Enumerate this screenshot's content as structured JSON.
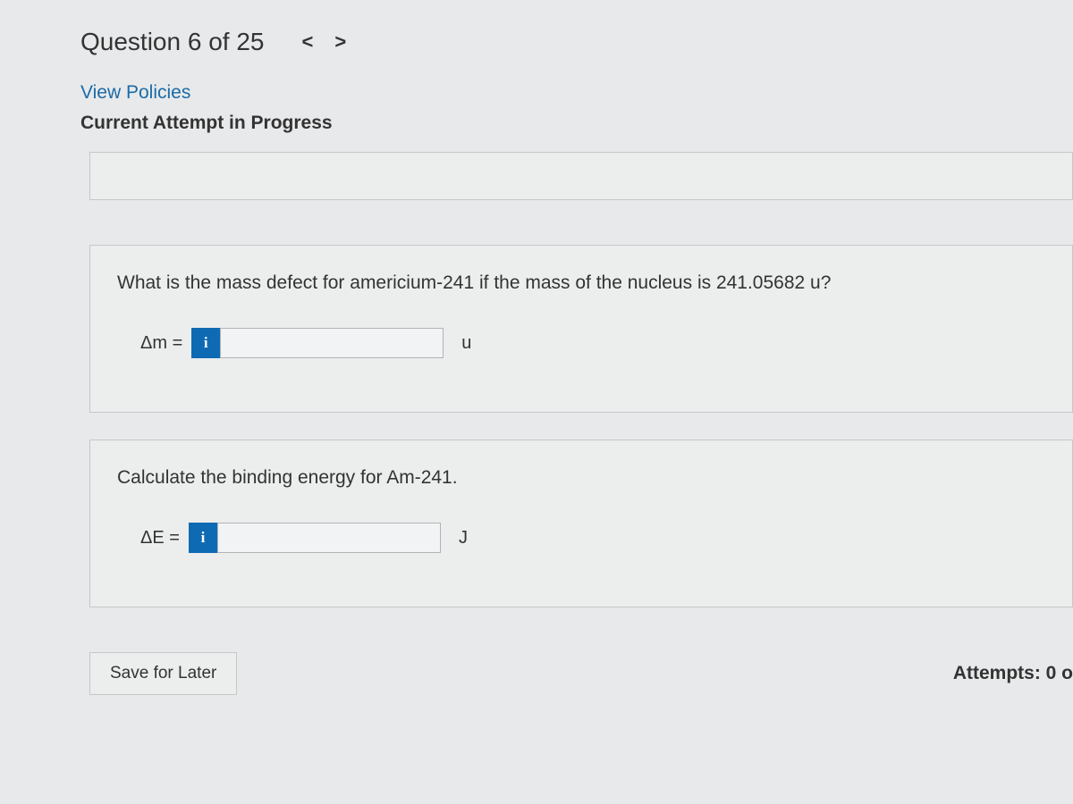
{
  "header": {
    "question_number": "Question 6 of 25",
    "prev_arrow": "<",
    "next_arrow": ">"
  },
  "policies_link": "View Policies",
  "attempt_status": "Current Attempt in Progress",
  "question1": {
    "prompt": "What is the mass defect for americium-241 if the mass of the nucleus is 241.05682 u?",
    "label": "Δm =",
    "info_icon": "i",
    "value": "",
    "unit": "u"
  },
  "question2": {
    "prompt": "Calculate the binding energy for Am-241.",
    "label": "ΔE =",
    "info_icon": "i",
    "value": "",
    "unit": "J"
  },
  "footer": {
    "save_label": "Save for Later",
    "attempts": "Attempts: 0 o"
  },
  "colors": {
    "background": "#e8e9ea",
    "panel_bg": "#eceded",
    "border": "#c5c7c9",
    "link": "#1a6ba8",
    "info_badge_bg": "#0f6ab4",
    "text": "#333333"
  }
}
